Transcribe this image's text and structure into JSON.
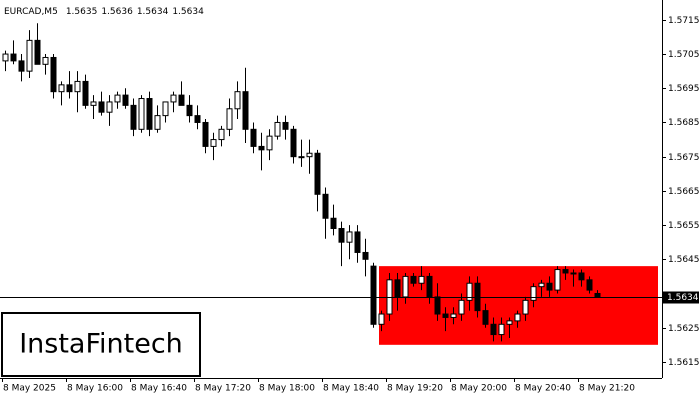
{
  "chart_data": {
    "type": "candlestick",
    "title": "EURCAD,M5",
    "categories": [
      "8 May 2025",
      null,
      null,
      null,
      null,
      null,
      null,
      null,
      "8 May 16:00",
      null,
      null,
      null,
      null,
      null,
      null,
      null,
      "8 May 16:40",
      null,
      null,
      null,
      null,
      null,
      null,
      null,
      "8 May 17:20",
      null,
      null,
      null,
      null,
      null,
      null,
      null,
      "8 May 18:00",
      null,
      null,
      null,
      null,
      null,
      null,
      null,
      "8 May 18:40",
      null,
      null,
      null,
      null,
      null,
      null,
      null,
      "8 May 19:20",
      null,
      null,
      null,
      null,
      null,
      null,
      null,
      "8 May 20:00",
      null,
      null,
      null,
      null,
      null,
      null,
      null,
      "8 May 20:40",
      null,
      null,
      null,
      null,
      null,
      null,
      null,
      "8 May 21:20",
      null,
      null
    ],
    "open": [
      1.5703,
      1.5705,
      1.5703,
      1.57,
      1.5709,
      1.5702,
      1.5704,
      1.5694,
      1.5696,
      1.5694,
      1.5697,
      1.569,
      1.5691,
      1.5688,
      1.5691,
      1.5693,
      1.569,
      1.5683,
      1.5692,
      1.5683,
      1.5687,
      1.5691,
      1.5693,
      1.569,
      1.5687,
      1.5685,
      1.5678,
      1.568,
      1.5683,
      1.5689,
      1.5694,
      1.5683,
      1.5678,
      1.5677,
      1.5681,
      1.5685,
      1.5683,
      1.5675,
      1.5675,
      1.5676,
      1.5664,
      1.5657,
      1.5654,
      1.565,
      1.5653,
      1.5647,
      1.5643,
      1.5626,
      1.5629,
      1.5639,
      1.5634,
      1.564,
      1.5638,
      1.564,
      1.5634,
      1.5629,
      1.5628,
      1.5629,
      1.5633,
      1.5638,
      1.563,
      1.5626,
      1.5623,
      1.5626,
      1.5627,
      1.5629,
      1.5633,
      1.5637,
      1.5638,
      1.5636,
      1.5642,
      1.5641,
      1.5641,
      1.5639,
      1.5635
    ],
    "high": [
      1.5706,
      1.5709,
      1.5705,
      1.5712,
      1.5714,
      1.5705,
      1.5705,
      1.5697,
      1.57,
      1.57,
      1.5699,
      1.5693,
      1.5694,
      1.5693,
      1.5694,
      1.5695,
      1.5692,
      1.5693,
      1.5694,
      1.569,
      1.5691,
      1.5694,
      1.5697,
      1.5693,
      1.569,
      1.5686,
      1.5682,
      1.5684,
      1.5692,
      1.5697,
      1.5701,
      1.5685,
      1.5682,
      1.5683,
      1.5687,
      1.5687,
      1.5684,
      1.568,
      1.568,
      1.5677,
      1.5666,
      1.5661,
      1.5656,
      1.5655,
      1.5655,
      1.5651,
      1.5644,
      1.563,
      1.5641,
      1.5641,
      1.5641,
      1.5641,
      1.5643,
      1.5641,
      1.5638,
      1.5631,
      1.5631,
      1.5635,
      1.564,
      1.564,
      1.5632,
      1.5628,
      1.5628,
      1.5628,
      1.563,
      1.5634,
      1.5638,
      1.5639,
      1.564,
      1.5643,
      1.5643,
      1.5642,
      1.5642,
      1.564,
      1.5636
    ],
    "low": [
      1.57,
      1.5702,
      1.5697,
      1.5698,
      1.5703,
      1.5699,
      1.5692,
      1.569,
      1.5692,
      1.5688,
      1.5689,
      1.5686,
      1.5687,
      1.5684,
      1.5689,
      1.5689,
      1.5681,
      1.5682,
      1.5681,
      1.5682,
      1.5685,
      1.5688,
      1.569,
      1.5685,
      1.5683,
      1.5676,
      1.5674,
      1.5678,
      1.5681,
      1.5686,
      1.5679,
      1.5676,
      1.5671,
      1.5674,
      1.568,
      1.568,
      1.5673,
      1.5672,
      1.567,
      1.5659,
      1.5651,
      1.5652,
      1.5643,
      1.5645,
      1.5644,
      1.564,
      1.5625,
      1.5624,
      1.5627,
      1.563,
      1.5632,
      1.5637,
      1.5636,
      1.5632,
      1.5627,
      1.5624,
      1.5626,
      1.5627,
      1.563,
      1.5628,
      1.5625,
      1.5621,
      1.5621,
      1.5622,
      1.5625,
      1.5627,
      1.5631,
      1.5634,
      1.5634,
      1.5635,
      1.5639,
      1.5637,
      1.5637,
      1.5635,
      1.5634
    ],
    "close": [
      1.5705,
      1.5703,
      1.57,
      1.5709,
      1.5702,
      1.5704,
      1.5694,
      1.5696,
      1.5694,
      1.5697,
      1.569,
      1.5691,
      1.5688,
      1.5691,
      1.5693,
      1.569,
      1.5683,
      1.5692,
      1.5683,
      1.5687,
      1.5691,
      1.5693,
      1.569,
      1.5687,
      1.5685,
      1.5678,
      1.568,
      1.5683,
      1.5689,
      1.5694,
      1.5683,
      1.5678,
      1.5677,
      1.5681,
      1.5685,
      1.5683,
      1.5675,
      1.5675,
      1.5676,
      1.5664,
      1.5657,
      1.5654,
      1.565,
      1.5653,
      1.5647,
      1.5645,
      1.5626,
      1.5629,
      1.5639,
      1.5634,
      1.564,
      1.5638,
      1.564,
      1.5634,
      1.5629,
      1.5628,
      1.5629,
      1.5633,
      1.5638,
      1.563,
      1.5626,
      1.5623,
      1.5626,
      1.5627,
      1.5629,
      1.5633,
      1.5637,
      1.5638,
      1.5636,
      1.5642,
      1.5641,
      1.5641,
      1.5639,
      1.5636,
      1.5634
    ],
    "ylim": [
      1.56103,
      1.57208
    ],
    "yticks": [
      1.5715,
      1.5705,
      1.5695,
      1.5685,
      1.5675,
      1.5665,
      1.5655,
      1.5645,
      1.5625,
      1.5615
    ],
    "zone": {
      "start": 47,
      "high": 1.5643,
      "low": 1.562,
      "color": "#ff0000"
    },
    "bull_color": "#ffffff",
    "bear_color": "#000000",
    "logo": "InstaFintech"
  }
}
